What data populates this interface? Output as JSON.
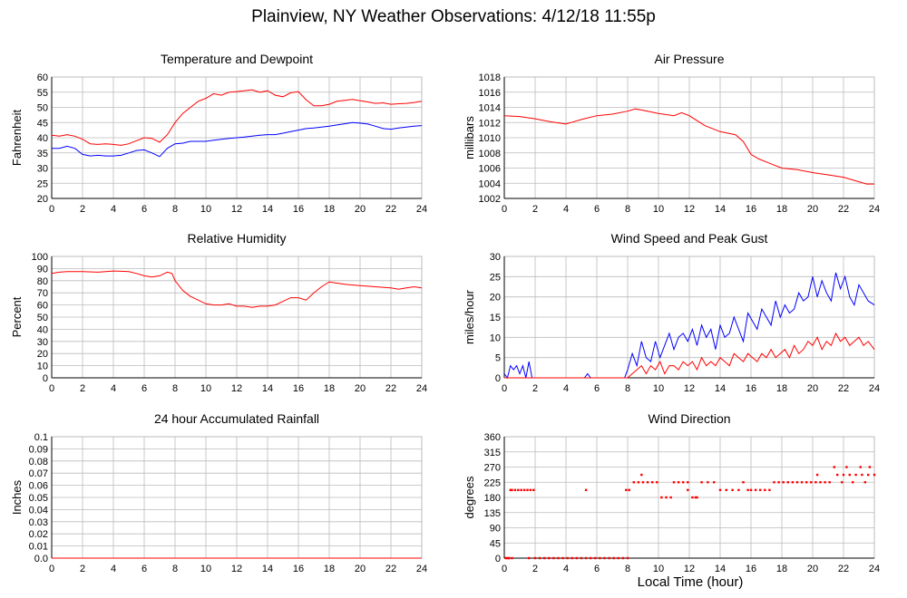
{
  "title": "Plainview, NY Weather Observations: 4/12/18 11:55p",
  "x_axis_title": "Local Time (hour)",
  "colors": {
    "red": "#ff0000",
    "blue": "#0000ff",
    "grid": "#bbbbbb",
    "axis": "#000000"
  },
  "chart_data": [
    {
      "id": "temperature",
      "type": "line",
      "title": "Temperature and Dewpoint",
      "ylabel": "Fahrenheit",
      "xlim": [
        0,
        24
      ],
      "ylim": [
        20,
        60
      ],
      "x_ticks": [
        "0",
        "2",
        "4",
        "6",
        "8",
        "10",
        "12",
        "14",
        "16",
        "18",
        "20",
        "22",
        "24"
      ],
      "y_ticks": [
        "20",
        "25",
        "30",
        "35",
        "40",
        "45",
        "50",
        "55",
        "60"
      ],
      "grid": true,
      "series": [
        {
          "color": "#ff0000",
          "x": [
            0,
            0.5,
            1,
            1.5,
            2,
            2.5,
            3,
            3.5,
            4,
            4.5,
            5,
            5.5,
            6,
            6.5,
            7,
            7.5,
            8,
            8.5,
            9,
            9.5,
            10,
            10.5,
            11,
            11.5,
            12,
            12.5,
            13,
            13.5,
            14,
            14.5,
            15,
            15.5,
            16,
            16.5,
            17,
            17.5,
            18,
            18.5,
            19,
            19.5,
            20,
            20.5,
            21,
            21.5,
            22,
            22.5,
            23,
            23.5,
            24
          ],
          "y": [
            40.8,
            40.5,
            41,
            40.5,
            39.5,
            38,
            37.8,
            38,
            37.8,
            37.5,
            38,
            39,
            40,
            39.8,
            38.5,
            41,
            45,
            48,
            50,
            52,
            53,
            54.5,
            54,
            55,
            55.2,
            55.5,
            55.8,
            55,
            55.5,
            54,
            53.5,
            54.8,
            55.2,
            52.5,
            50.5,
            50.5,
            51,
            52,
            52.3,
            52.6,
            52.2,
            51.8,
            51.3,
            51.5,
            51,
            51.2,
            51.3,
            51.6,
            52
          ]
        },
        {
          "color": "#0000ff",
          "x": [
            0,
            0.5,
            1,
            1.5,
            2,
            2.5,
            3,
            3.5,
            4,
            4.5,
            5,
            5.5,
            6,
            6.5,
            7,
            7.5,
            8,
            8.5,
            9,
            9.5,
            10,
            10.5,
            11,
            11.5,
            12,
            12.5,
            13,
            13.5,
            14,
            14.5,
            15,
            15.5,
            16,
            16.5,
            17,
            17.5,
            18,
            18.5,
            19,
            19.5,
            20,
            20.5,
            21,
            21.5,
            22,
            22.5,
            23,
            23.5,
            24
          ],
          "y": [
            36.5,
            36.5,
            37.2,
            36.5,
            34.5,
            34,
            34.2,
            34,
            34,
            34.2,
            35,
            35.8,
            36,
            35,
            33.8,
            36.5,
            38,
            38.2,
            38.8,
            38.8,
            38.8,
            39.2,
            39.5,
            39.8,
            40,
            40.2,
            40.5,
            40.8,
            41,
            41,
            41.5,
            42,
            42.5,
            43,
            43.2,
            43.5,
            43.8,
            44.2,
            44.6,
            45,
            44.8,
            44.5,
            43.8,
            43,
            42.8,
            43.2,
            43.5,
            43.8,
            44
          ]
        }
      ]
    },
    {
      "id": "pressure",
      "type": "line",
      "title": "Air Pressure",
      "ylabel": "millibars",
      "xlim": [
        0,
        24
      ],
      "ylim": [
        1002,
        1018
      ],
      "x_ticks": [
        "0",
        "2",
        "4",
        "6",
        "8",
        "10",
        "12",
        "14",
        "16",
        "18",
        "20",
        "22",
        "24"
      ],
      "y_ticks": [
        "1002",
        "1004",
        "1006",
        "1008",
        "1010",
        "1012",
        "1014",
        "1016",
        "1018"
      ],
      "grid": true,
      "series": [
        {
          "color": "#ff0000",
          "x": [
            0,
            1,
            2,
            3,
            4,
            5,
            6,
            7,
            8,
            8.5,
            9,
            9.5,
            10,
            11,
            11.5,
            12,
            13,
            14,
            15,
            15.5,
            16,
            16.5,
            17,
            17.5,
            18,
            19,
            20,
            21,
            22,
            23,
            23.5,
            24
          ],
          "y": [
            1012.9,
            1012.8,
            1012.5,
            1012.1,
            1011.8,
            1012.4,
            1012.9,
            1013.1,
            1013.5,
            1013.8,
            1013.6,
            1013.4,
            1013.2,
            1012.9,
            1013.3,
            1012.9,
            1011.6,
            1010.8,
            1010.4,
            1009.5,
            1007.8,
            1007.2,
            1006.8,
            1006.4,
            1006.0,
            1005.8,
            1005.4,
            1005.1,
            1004.8,
            1004.2,
            1003.9,
            1003.9
          ]
        }
      ]
    },
    {
      "id": "humidity",
      "type": "line",
      "title": "Relative Humidity",
      "ylabel": "Percent",
      "xlim": [
        0,
        24
      ],
      "ylim": [
        0,
        100
      ],
      "x_ticks": [
        "0",
        "2",
        "4",
        "6",
        "8",
        "10",
        "12",
        "14",
        "16",
        "18",
        "20",
        "22",
        "24"
      ],
      "y_ticks": [
        "0",
        "10",
        "20",
        "30",
        "40",
        "50",
        "60",
        "70",
        "80",
        "90",
        "100"
      ],
      "grid": true,
      "series": [
        {
          "color": "#ff0000",
          "x": [
            0,
            0.5,
            1,
            2,
            3,
            4,
            5,
            5.5,
            6,
            6.5,
            7,
            7.5,
            7.8,
            8,
            8.5,
            9,
            9.5,
            10,
            10.5,
            11,
            11.5,
            12,
            12.5,
            13,
            13.5,
            14,
            14.5,
            15,
            15.5,
            16,
            16.5,
            17,
            17.5,
            18,
            18.5,
            19,
            20,
            21,
            22,
            22.5,
            23,
            23.5,
            24
          ],
          "y": [
            86,
            87,
            87.5,
            87.5,
            87,
            88,
            87.5,
            86,
            84,
            83,
            84,
            87,
            86,
            80,
            72,
            67,
            64,
            61,
            60,
            60,
            61,
            59,
            59,
            58,
            59,
            59,
            60,
            63,
            66,
            66,
            64,
            70,
            75,
            79,
            78,
            77,
            76,
            75,
            74,
            73,
            74,
            75,
            74
          ]
        }
      ]
    },
    {
      "id": "wind_speed",
      "type": "line",
      "title": "Wind Speed and Peak Gust",
      "ylabel": "miles/hour",
      "xlim": [
        0,
        24
      ],
      "ylim": [
        0,
        30
      ],
      "x_ticks": [
        "0",
        "2",
        "4",
        "6",
        "8",
        "10",
        "12",
        "14",
        "16",
        "18",
        "20",
        "22",
        "24"
      ],
      "y_ticks": [
        "0",
        "5",
        "10",
        "15",
        "20",
        "25",
        "30"
      ],
      "grid": true,
      "series": [
        {
          "color": "#0000ff",
          "x": [
            0,
            0.2,
            0.4,
            0.6,
            0.8,
            1,
            1.2,
            1.4,
            1.6,
            1.8,
            2,
            5.2,
            5.4,
            5.6,
            7.8,
            8,
            8.3,
            8.6,
            8.9,
            9.2,
            9.5,
            9.8,
            10.1,
            10.4,
            10.7,
            11,
            11.3,
            11.6,
            11.9,
            12.2,
            12.5,
            12.8,
            13.1,
            13.4,
            13.7,
            14,
            14.3,
            14.6,
            14.9,
            15.2,
            15.5,
            15.8,
            16.1,
            16.4,
            16.7,
            17,
            17.3,
            17.6,
            17.9,
            18.2,
            18.5,
            18.8,
            19.1,
            19.4,
            19.7,
            20,
            20.3,
            20.6,
            20.9,
            21.2,
            21.5,
            21.8,
            22.1,
            22.4,
            22.7,
            23,
            23.3,
            23.6,
            24
          ],
          "y": [
            1,
            0,
            3,
            2,
            3,
            1,
            3,
            0,
            4,
            0,
            0,
            0,
            1,
            0,
            0,
            2,
            6,
            3,
            9,
            5,
            4,
            9,
            5,
            8,
            11,
            7,
            10,
            11,
            9,
            12,
            8,
            13,
            10,
            12,
            7,
            13,
            10,
            11,
            15,
            12,
            9,
            16,
            14,
            12,
            17,
            15,
            13,
            19,
            15,
            18,
            16,
            17,
            21,
            19,
            20,
            25,
            20,
            24,
            21,
            19,
            26,
            22,
            25,
            20,
            18,
            23,
            21,
            19,
            18
          ]
        },
        {
          "color": "#ff0000",
          "x": [
            0,
            1,
            2,
            5,
            7.8,
            8,
            8.3,
            8.6,
            8.9,
            9.2,
            9.5,
            9.8,
            10.1,
            10.4,
            10.7,
            11,
            11.3,
            11.6,
            11.9,
            12.2,
            12.5,
            12.8,
            13.1,
            13.4,
            13.7,
            14,
            14.3,
            14.6,
            14.9,
            15.2,
            15.5,
            15.8,
            16.1,
            16.4,
            16.7,
            17,
            17.3,
            17.6,
            17.9,
            18.2,
            18.5,
            18.8,
            19.1,
            19.4,
            19.7,
            20,
            20.3,
            20.6,
            20.9,
            21.2,
            21.5,
            21.8,
            22.1,
            22.4,
            22.7,
            23,
            23.3,
            23.6,
            24
          ],
          "y": [
            0,
            0,
            0,
            0,
            0,
            0,
            1,
            2,
            3,
            1,
            3,
            2,
            4,
            1,
            3,
            3,
            2,
            4,
            3,
            4,
            2,
            5,
            3,
            4,
            3,
            5,
            4,
            3,
            6,
            5,
            4,
            6,
            5,
            4,
            6,
            5,
            7,
            5,
            6,
            7,
            5,
            8,
            6,
            7,
            9,
            8,
            10,
            7,
            9,
            8,
            11,
            9,
            10,
            8,
            9,
            10,
            8,
            9,
            7
          ]
        }
      ]
    },
    {
      "id": "rainfall",
      "type": "line",
      "title": "24 hour Accumulated Rainfall",
      "ylabel": "Inches",
      "xlim": [
        0,
        24
      ],
      "ylim": [
        0,
        0.1
      ],
      "x_ticks": [
        "0",
        "2",
        "4",
        "6",
        "8",
        "10",
        "12",
        "14",
        "16",
        "18",
        "20",
        "22",
        "24"
      ],
      "y_ticks": [
        "0.0",
        "0.01",
        "0.02",
        "0.03",
        "0.04",
        "0.05",
        "0.06",
        "0.07",
        "0.08",
        "0.09",
        "0.1"
      ],
      "grid": true,
      "series": [
        {
          "color": "#ff0000",
          "x": [
            0,
            24
          ],
          "y": [
            0,
            0
          ]
        }
      ]
    },
    {
      "id": "wind_direction",
      "type": "scatter",
      "title": "Wind Direction",
      "ylabel": "degrees",
      "xlim": [
        0,
        24
      ],
      "ylim": [
        0,
        360
      ],
      "x_ticks": [
        "0",
        "2",
        "4",
        "6",
        "8",
        "10",
        "12",
        "14",
        "16",
        "18",
        "20",
        "22",
        "24"
      ],
      "y_ticks": [
        "0",
        "45",
        "90",
        "135",
        "180",
        "225",
        "270",
        "315",
        "360"
      ],
      "grid": true,
      "series": [
        {
          "color": "#ff0000",
          "x": [
            0.1,
            0.2,
            0.3,
            0.4,
            0.5,
            0.7,
            0.9,
            1.1,
            1.3,
            1.5,
            1.7,
            1.9,
            1.6,
            2,
            2.3,
            2.6,
            2.9,
            3.2,
            3.5,
            3.8,
            4.1,
            4.4,
            4.7,
            5,
            5.3,
            5.6,
            5.9,
            6.2,
            6.5,
            6.8,
            7.1,
            7.4,
            7.7,
            8,
            5.3,
            7.9,
            8.1,
            8.4,
            8.7,
            9,
            9.3,
            9.6,
            9.9,
            8.9,
            10.2,
            10.5,
            10.8,
            11,
            11.3,
            11.6,
            11.9,
            12.2,
            12.5,
            12.8,
            11.9,
            12.4,
            13.2,
            13.6,
            14,
            14.4,
            14.8,
            15.2,
            15.5,
            15.8,
            16,
            16.3,
            16.6,
            16.9,
            17.2,
            17.5,
            17.8,
            18.1,
            18.4,
            18.7,
            19,
            19.3,
            19.6,
            19.9,
            20.2,
            20.5,
            20.8,
            21.1,
            20.3,
            21.6,
            22,
            22.4,
            22.8,
            23.2,
            23.6,
            24,
            21.4,
            22.2,
            23.1,
            23.7,
            21.9,
            22.6,
            23.4,
            0.3,
            0.5
          ],
          "y": [
            0,
            0,
            0,
            202,
            202,
            202,
            202,
            202,
            202,
            202,
            202,
            202,
            0,
            0,
            0,
            0,
            0,
            0,
            0,
            0,
            0,
            0,
            0,
            0,
            0,
            0,
            0,
            0,
            0,
            0,
            0,
            0,
            0,
            0,
            202,
            202,
            202,
            225,
            225,
            225,
            225,
            225,
            225,
            247,
            180,
            180,
            180,
            225,
            225,
            225,
            225,
            180,
            180,
            225,
            202,
            180,
            225,
            225,
            202,
            202,
            202,
            202,
            225,
            202,
            202,
            202,
            202,
            202,
            202,
            225,
            225,
            225,
            225,
            225,
            225,
            225,
            225,
            225,
            225,
            225,
            225,
            225,
            247,
            247,
            247,
            247,
            247,
            247,
            247,
            247,
            270,
            270,
            270,
            270,
            225,
            225,
            225,
            0,
            0
          ]
        }
      ]
    }
  ]
}
